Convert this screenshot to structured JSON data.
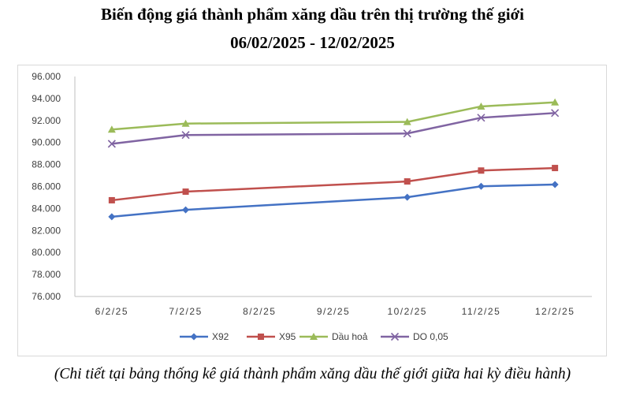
{
  "chart_data": {
    "type": "line",
    "title": "Biến động giá thành phẩm xăng dầu trên thị trường thế giới",
    "subtitle": "06/02/2025 - 12/02/2025",
    "x": [
      "6/2/25",
      "7/2/25",
      "8/2/25",
      "9/2/25",
      "10/2/25",
      "11/2/25",
      "12/2/25"
    ],
    "yticks": [
      "76.000",
      "78.000",
      "80.000",
      "82.000",
      "84.000",
      "86.000",
      "88.000",
      "90.000",
      "92.000",
      "94.000",
      "96.000"
    ],
    "ylim": [
      76000,
      96000
    ],
    "grid": false,
    "legend_position": "bottom",
    "series": [
      {
        "name": "X92",
        "color": "#4472c4",
        "marker": "diamond",
        "points": [
          [
            0,
            83250
          ],
          [
            1,
            83880
          ],
          [
            4,
            85020
          ],
          [
            5,
            86020
          ],
          [
            6,
            86180
          ]
        ]
      },
      {
        "name": "X95",
        "color": "#c0504d",
        "marker": "square",
        "points": [
          [
            0,
            84750
          ],
          [
            1,
            85530
          ],
          [
            4,
            86460
          ],
          [
            5,
            87450
          ],
          [
            6,
            87680
          ]
        ]
      },
      {
        "name": "Dầu hoả",
        "color": "#9bbb59",
        "marker": "triangle",
        "points": [
          [
            0,
            91180
          ],
          [
            1,
            91720
          ],
          [
            4,
            91870
          ],
          [
            5,
            93280
          ],
          [
            6,
            93650
          ]
        ]
      },
      {
        "name": "DO 0,05",
        "color": "#8064a2",
        "marker": "x",
        "points": [
          [
            0,
            89880
          ],
          [
            1,
            90680
          ],
          [
            4,
            90820
          ],
          [
            5,
            92250
          ],
          [
            6,
            92680
          ]
        ]
      }
    ]
  },
  "caption": "(Chi tiết tại bảng thống kê giá thành phẩm xăng dầu thế giới giữa hai kỳ điều hành)"
}
